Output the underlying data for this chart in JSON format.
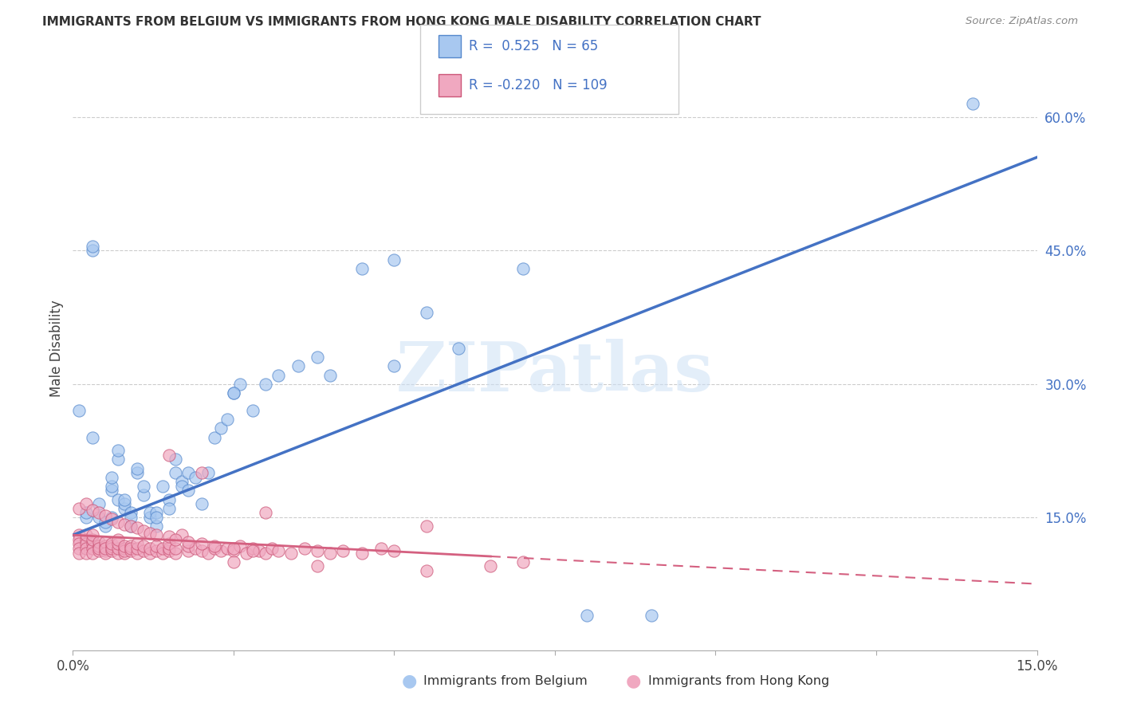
{
  "title": "IMMIGRANTS FROM BELGIUM VS IMMIGRANTS FROM HONG KONG MALE DISABILITY CORRELATION CHART",
  "source": "Source: ZipAtlas.com",
  "ylabel": "Male Disability",
  "xlim": [
    0.0,
    0.15
  ],
  "ylim": [
    0.0,
    0.68
  ],
  "belgium_color": "#A8C8F0",
  "hong_kong_color": "#F0A8C0",
  "belgium_edge_color": "#5588CC",
  "hong_kong_edge_color": "#CC5577",
  "belgium_line_color": "#4472C4",
  "hong_kong_line_color": "#D46080",
  "belgium_R": 0.525,
  "belgium_N": 65,
  "hong_kong_R": -0.22,
  "hong_kong_N": 109,
  "watermark": "ZIPatlas",
  "background_color": "#FFFFFF",
  "grid_color": "#CCCCCC",
  "legend_label_belgium": "Immigrants from Belgium",
  "legend_label_hong_kong": "Immigrants from Hong Kong",
  "belgium_line_x0": 0.0,
  "belgium_line_y0": 0.13,
  "belgium_line_x1": 0.15,
  "belgium_line_y1": 0.555,
  "hong_kong_line_solid_x0": 0.0,
  "hong_kong_line_solid_y0": 0.13,
  "hong_kong_line_solid_x1": 0.065,
  "hong_kong_line_solid_y1": 0.106,
  "hong_kong_line_dash_x0": 0.065,
  "hong_kong_line_dash_y0": 0.106,
  "hong_kong_line_dash_x1": 0.15,
  "hong_kong_line_dash_y1": 0.075,
  "belgium_scatter_x": [
    0.001,
    0.002,
    0.002,
    0.003,
    0.003,
    0.004,
    0.004,
    0.005,
    0.005,
    0.006,
    0.006,
    0.006,
    0.007,
    0.007,
    0.007,
    0.008,
    0.008,
    0.008,
    0.009,
    0.009,
    0.009,
    0.01,
    0.01,
    0.011,
    0.011,
    0.012,
    0.012,
    0.013,
    0.013,
    0.013,
    0.014,
    0.015,
    0.015,
    0.016,
    0.016,
    0.017,
    0.017,
    0.018,
    0.018,
    0.019,
    0.02,
    0.021,
    0.022,
    0.023,
    0.024,
    0.025,
    0.026,
    0.028,
    0.03,
    0.032,
    0.035,
    0.038,
    0.04,
    0.045,
    0.05,
    0.055,
    0.06,
    0.07,
    0.08,
    0.09,
    0.003,
    0.025,
    0.05,
    0.14,
    0.006
  ],
  "belgium_scatter_y": [
    0.27,
    0.15,
    0.155,
    0.45,
    0.455,
    0.15,
    0.165,
    0.14,
    0.145,
    0.18,
    0.185,
    0.195,
    0.17,
    0.215,
    0.225,
    0.16,
    0.165,
    0.17,
    0.14,
    0.155,
    0.15,
    0.2,
    0.205,
    0.175,
    0.185,
    0.15,
    0.155,
    0.155,
    0.14,
    0.15,
    0.185,
    0.17,
    0.16,
    0.2,
    0.215,
    0.19,
    0.185,
    0.18,
    0.2,
    0.195,
    0.165,
    0.2,
    0.24,
    0.25,
    0.26,
    0.29,
    0.3,
    0.27,
    0.3,
    0.31,
    0.32,
    0.33,
    0.31,
    0.43,
    0.32,
    0.38,
    0.34,
    0.43,
    0.04,
    0.04,
    0.24,
    0.29,
    0.44,
    0.615,
    0.15
  ],
  "hong_kong_scatter_x": [
    0.001,
    0.001,
    0.001,
    0.001,
    0.001,
    0.002,
    0.002,
    0.002,
    0.002,
    0.002,
    0.003,
    0.003,
    0.003,
    0.003,
    0.003,
    0.004,
    0.004,
    0.004,
    0.004,
    0.005,
    0.005,
    0.005,
    0.005,
    0.005,
    0.006,
    0.006,
    0.006,
    0.006,
    0.007,
    0.007,
    0.007,
    0.007,
    0.008,
    0.008,
    0.008,
    0.008,
    0.009,
    0.009,
    0.009,
    0.01,
    0.01,
    0.01,
    0.011,
    0.011,
    0.012,
    0.012,
    0.013,
    0.013,
    0.014,
    0.014,
    0.015,
    0.015,
    0.015,
    0.016,
    0.016,
    0.017,
    0.018,
    0.018,
    0.019,
    0.02,
    0.021,
    0.022,
    0.023,
    0.024,
    0.025,
    0.026,
    0.027,
    0.028,
    0.029,
    0.03,
    0.031,
    0.032,
    0.034,
    0.036,
    0.038,
    0.04,
    0.042,
    0.045,
    0.048,
    0.05,
    0.001,
    0.002,
    0.003,
    0.004,
    0.005,
    0.006,
    0.007,
    0.008,
    0.009,
    0.01,
    0.011,
    0.012,
    0.013,
    0.015,
    0.016,
    0.018,
    0.02,
    0.022,
    0.025,
    0.028,
    0.015,
    0.03,
    0.038,
    0.055,
    0.025,
    0.02,
    0.065,
    0.055,
    0.07
  ],
  "hong_kong_scatter_y": [
    0.13,
    0.125,
    0.12,
    0.115,
    0.11,
    0.125,
    0.12,
    0.115,
    0.11,
    0.13,
    0.12,
    0.115,
    0.11,
    0.125,
    0.13,
    0.112,
    0.118,
    0.122,
    0.115,
    0.112,
    0.118,
    0.122,
    0.11,
    0.115,
    0.112,
    0.118,
    0.115,
    0.12,
    0.11,
    0.115,
    0.12,
    0.125,
    0.11,
    0.115,
    0.112,
    0.118,
    0.112,
    0.118,
    0.115,
    0.11,
    0.115,
    0.12,
    0.112,
    0.118,
    0.11,
    0.115,
    0.112,
    0.118,
    0.11,
    0.115,
    0.112,
    0.115,
    0.12,
    0.11,
    0.115,
    0.13,
    0.112,
    0.118,
    0.115,
    0.112,
    0.11,
    0.115,
    0.112,
    0.115,
    0.112,
    0.118,
    0.11,
    0.115,
    0.112,
    0.11,
    0.115,
    0.112,
    0.11,
    0.115,
    0.112,
    0.11,
    0.112,
    0.11,
    0.115,
    0.112,
    0.16,
    0.165,
    0.158,
    0.155,
    0.152,
    0.148,
    0.145,
    0.142,
    0.14,
    0.138,
    0.135,
    0.132,
    0.13,
    0.128,
    0.125,
    0.122,
    0.12,
    0.118,
    0.115,
    0.112,
    0.22,
    0.155,
    0.095,
    0.14,
    0.1,
    0.2,
    0.095,
    0.09,
    0.1
  ]
}
